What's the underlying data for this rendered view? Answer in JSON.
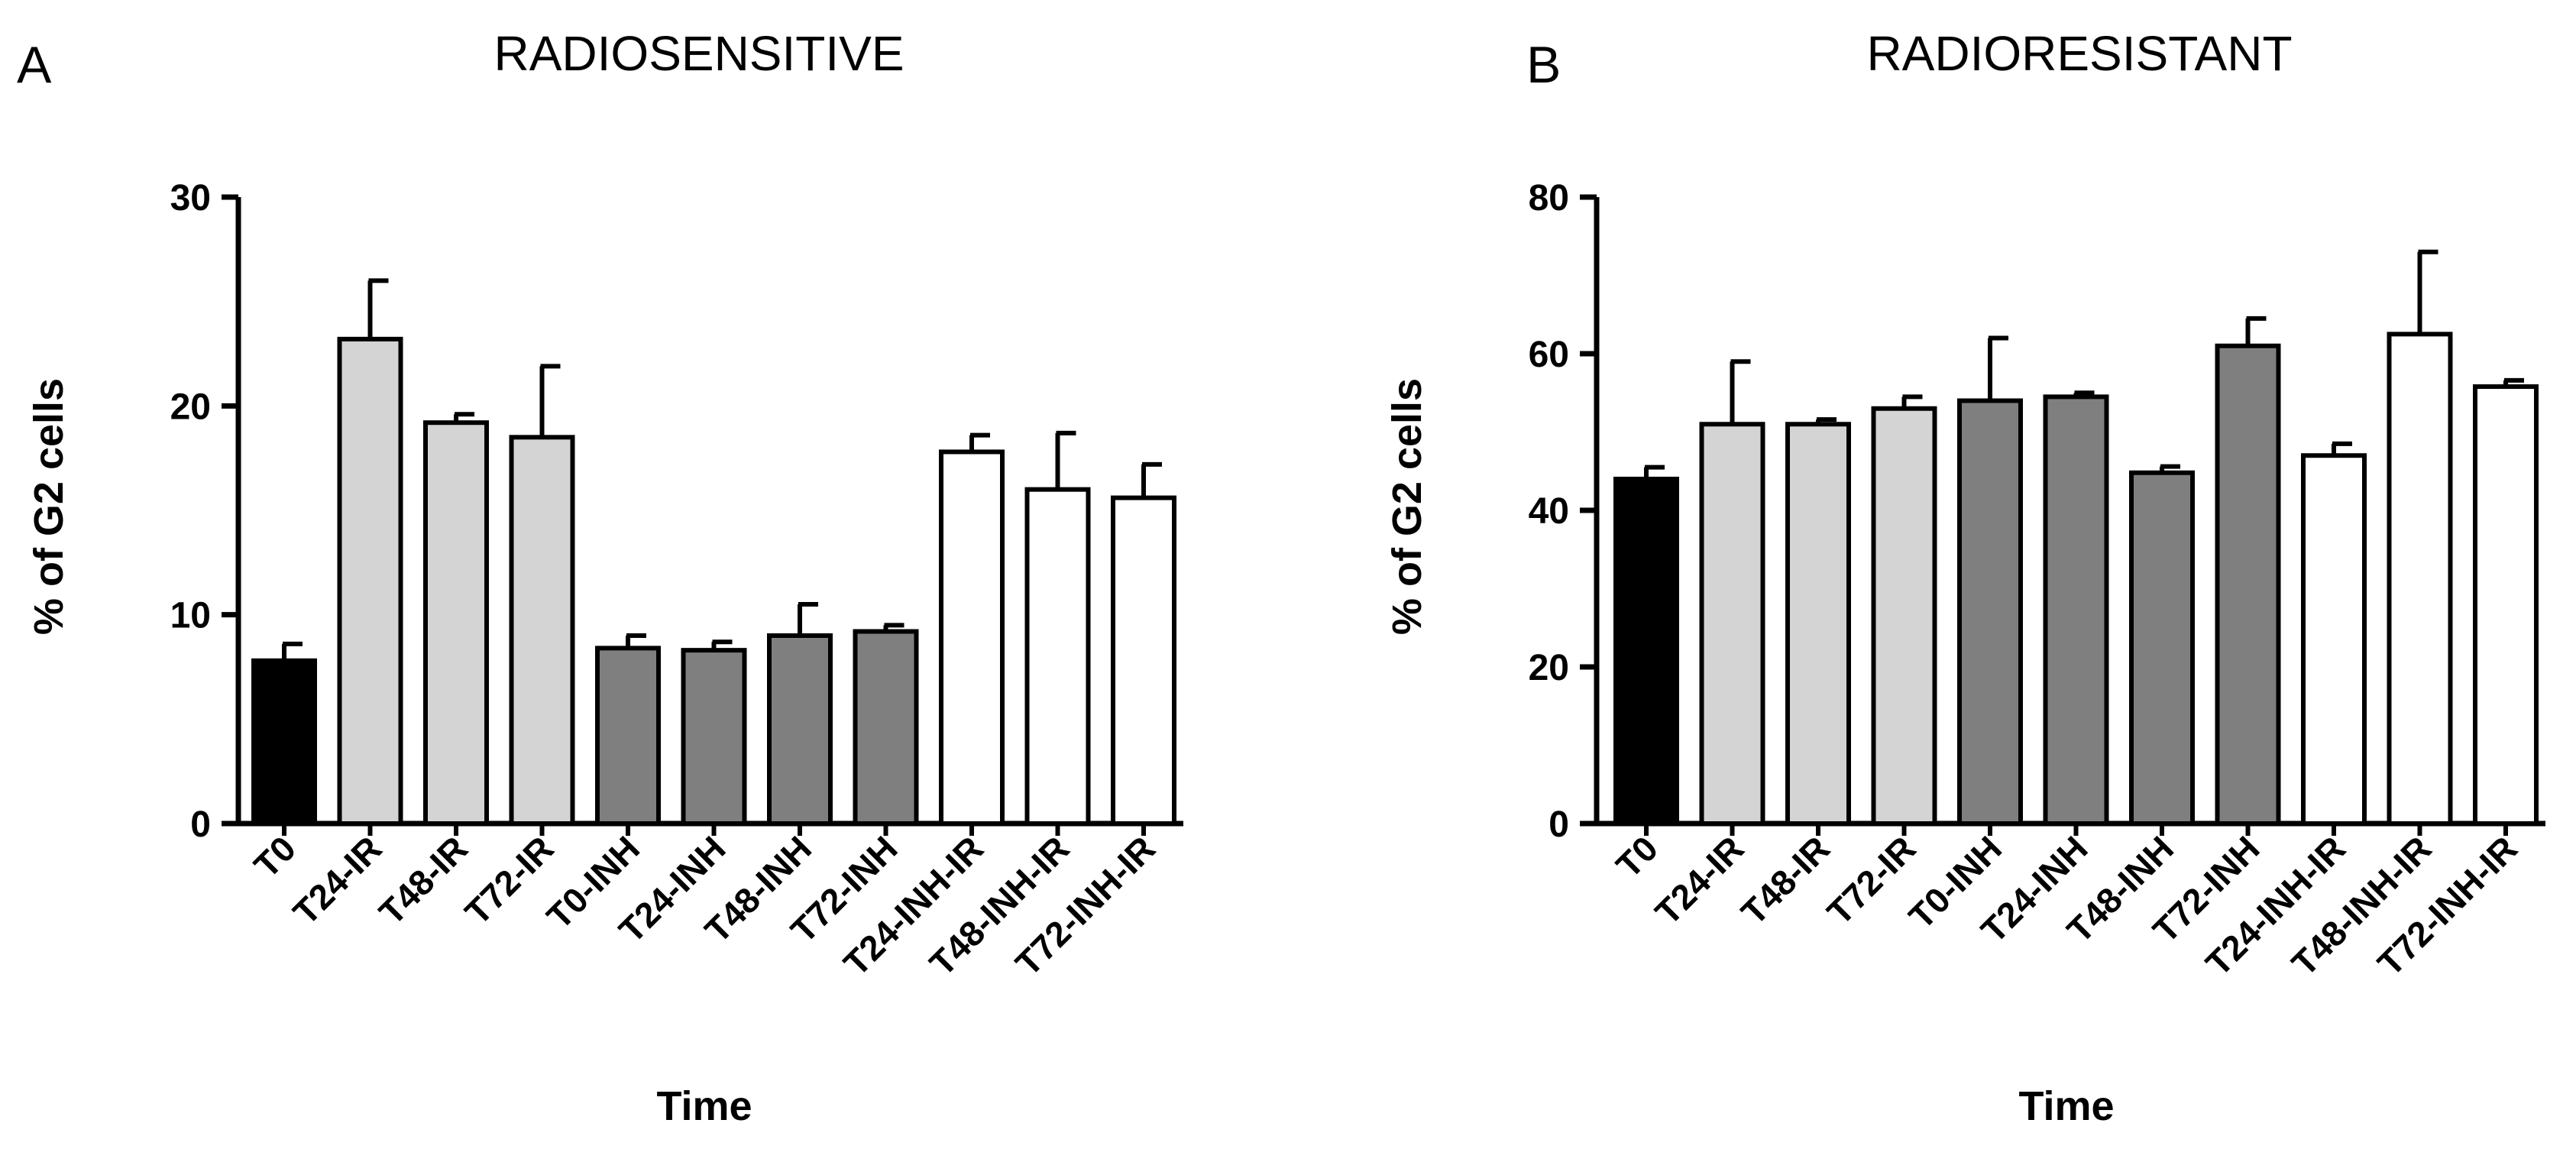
{
  "panels": [
    {
      "letter": "A",
      "title": "RADIOSENSITIVE",
      "ylabel": "% of G2 cells",
      "xlabel": "Time"
    },
    {
      "letter": "B",
      "title": "RADIORESISTANT",
      "ylabel": "% of G2 cells",
      "xlabel": "Time"
    }
  ],
  "colors": {
    "T0": "#000000",
    "IR": "#d4d4d4",
    "INH": "#7f7f7f",
    "INH-IR": "#ffffff",
    "outline": "#000000"
  },
  "chart_data": [
    {
      "type": "bar",
      "title": "RADIOSENSITIVE",
      "xlabel": "Time",
      "ylabel": "% of G2 cells",
      "categories": [
        "T0",
        "T24-IR",
        "T48-IR",
        "T72-IR",
        "T0-INH",
        "T24-INH",
        "T48-INH",
        "T72-INH",
        "T24-INH-IR",
        "T48-INH-IR",
        "T72-INH-IR"
      ],
      "groups": [
        "T0",
        "IR",
        "IR",
        "IR",
        "INH",
        "INH",
        "INH",
        "INH",
        "INH-IR",
        "INH-IR",
        "INH-IR"
      ],
      "values": [
        7.8,
        23.2,
        19.2,
        18.5,
        8.4,
        8.3,
        9.0,
        9.2,
        17.8,
        16.0,
        15.6
      ],
      "errors": [
        0.8,
        2.8,
        0.4,
        3.4,
        0.6,
        0.4,
        1.5,
        0.3,
        0.8,
        2.7,
        1.6
      ],
      "ylim": [
        0,
        30
      ],
      "yticks": [
        0,
        10,
        20,
        30
      ]
    },
    {
      "type": "bar",
      "title": "RADIORESISTANT",
      "xlabel": "Time",
      "ylabel": "% of G2 cells",
      "categories": [
        "T0",
        "T24-IR",
        "T48-IR",
        "T72-IR",
        "T0-INH",
        "T24-INH",
        "T48-INH",
        "T72-INH",
        "T24-INH-IR",
        "T48-INH-IR",
        "T72-INH-IR"
      ],
      "groups": [
        "T0",
        "IR",
        "IR",
        "IR",
        "INH",
        "INH",
        "INH",
        "INH",
        "INH-IR",
        "INH-IR",
        "INH-IR"
      ],
      "values": [
        44.0,
        51.0,
        51.0,
        53.0,
        54.0,
        54.5,
        44.8,
        61.0,
        47.0,
        62.5,
        55.8
      ],
      "errors": [
        1.5,
        8.0,
        0.6,
        1.5,
        8.0,
        0.5,
        0.8,
        3.5,
        1.5,
        10.5,
        0.8
      ],
      "ylim": [
        0,
        80
      ],
      "yticks": [
        0,
        20,
        40,
        60,
        80
      ]
    }
  ]
}
